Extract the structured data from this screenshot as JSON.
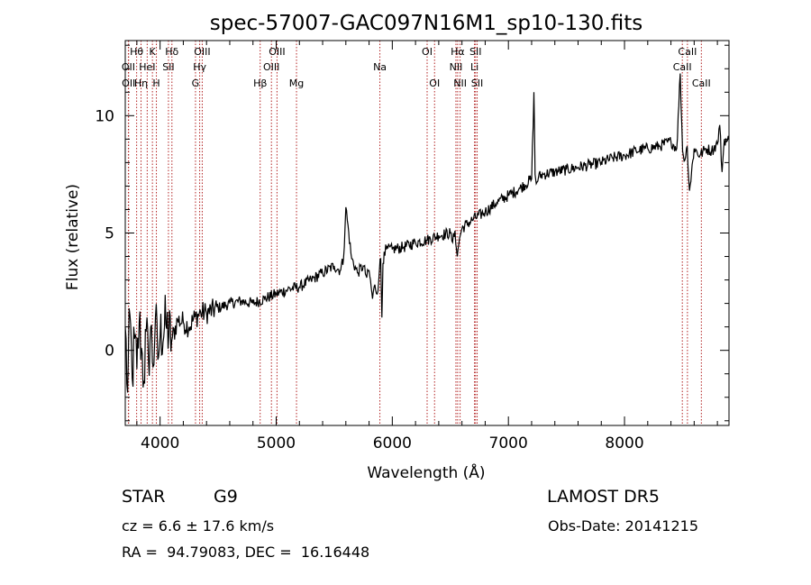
{
  "chart_data": {
    "type": "line",
    "title": "spec-57007-GAC097N16M1_sp10-130.fits",
    "xlabel": "Wavelength (Å)",
    "ylabel": "Flux (relative)",
    "xlim": [
      3700,
      8900
    ],
    "ylim": [
      -3.2,
      13.2
    ],
    "x_ticks": [
      4000,
      5000,
      6000,
      7000,
      8000
    ],
    "y_ticks": [
      0,
      5,
      10
    ],
    "line_color": "#000000",
    "marker_color": "#b22222",
    "grid": false,
    "series": [
      {
        "values_x": [
          3700,
          3720,
          3740,
          3760,
          3780,
          3800,
          3820,
          3840,
          3860,
          3880,
          3900,
          3920,
          3940,
          3960,
          3980,
          4000,
          4050,
          4100,
          4150,
          4200,
          4250,
          4300,
          4350,
          4400,
          4500,
          4600,
          4700,
          4800,
          4900,
          5000,
          5100,
          5200,
          5300,
          5400,
          5500,
          5550,
          5580,
          5600,
          5650,
          5700,
          5750,
          5780,
          5800,
          5830,
          5850,
          5870,
          5890,
          5900,
          5910,
          5920,
          5930,
          5950,
          6000,
          6100,
          6200,
          6300,
          6400,
          6500,
          6520,
          6540,
          6560,
          6580,
          6600,
          6700,
          6800,
          6900,
          7000,
          7100,
          7200,
          7220,
          7230,
          7240,
          7260,
          7300,
          7400,
          7500,
          7600,
          7700,
          7800,
          7900,
          8000,
          8100,
          8200,
          8300,
          8400,
          8450,
          8480,
          8500,
          8520,
          8540,
          8560,
          8600,
          8650,
          8700,
          8750,
          8800,
          8820,
          8840,
          8860,
          8880,
          8900
        ],
        "values_y": [
          1.0,
          -1.8,
          1.5,
          -1.2,
          0.5,
          -0.8,
          1.2,
          0.1,
          -1.3,
          0.8,
          -0.5,
          1.0,
          -0.7,
          1.4,
          -0.4,
          0.6,
          1.1,
          0.4,
          1.3,
          1.2,
          1.0,
          1.4,
          1.6,
          1.6,
          1.8,
          2.0,
          2.1,
          2.0,
          2.2,
          2.4,
          2.6,
          2.7,
          3.0,
          3.3,
          3.6,
          3.4,
          3.9,
          6.1,
          3.9,
          3.3,
          3.6,
          3.1,
          3.4,
          2.2,
          2.8,
          2.4,
          3.5,
          3.9,
          1.4,
          3.7,
          4.2,
          4.3,
          4.3,
          4.4,
          4.6,
          4.7,
          4.9,
          5.0,
          4.6,
          5.1,
          4.0,
          4.8,
          5.2,
          5.6,
          5.9,
          6.3,
          6.6,
          6.9,
          7.3,
          11.0,
          7.5,
          7.1,
          7.4,
          7.5,
          7.6,
          7.7,
          7.8,
          7.9,
          8.0,
          8.2,
          8.3,
          8.5,
          8.6,
          8.7,
          8.9,
          8.6,
          11.8,
          8.5,
          8.1,
          8.7,
          6.8,
          8.6,
          8.3,
          8.6,
          8.5,
          8.8,
          9.6,
          7.6,
          9.0,
          8.9,
          9.0
        ]
      }
    ],
    "lines": [
      {
        "label": "Hθ",
        "x": 3798,
        "row": 0
      },
      {
        "label": "OII",
        "x": 3727,
        "row": 1
      },
      {
        "label": "OII",
        "x": 3729,
        "row": 2
      },
      {
        "label": "Hη",
        "x": 3836,
        "row": 2
      },
      {
        "label": "HeI",
        "x": 3889,
        "row": 1
      },
      {
        "label": "K",
        "x": 3934,
        "row": 0
      },
      {
        "label": "H",
        "x": 3968,
        "row": 2
      },
      {
        "label": "Hδ",
        "x": 4102,
        "row": 0
      },
      {
        "label": "SII",
        "x": 4072,
        "row": 1
      },
      {
        "label": "OIII",
        "x": 4363,
        "row": 0
      },
      {
        "label": "Hγ",
        "x": 4341,
        "row": 1
      },
      {
        "label": "G",
        "x": 4305,
        "row": 2
      },
      {
        "label": "Hβ",
        "x": 4862,
        "row": 2
      },
      {
        "label": "OIII",
        "x": 4959,
        "row": 1
      },
      {
        "label": "OIII",
        "x": 5007,
        "row": 0
      },
      {
        "label": "Mg",
        "x": 5175,
        "row": 2
      },
      {
        "label": "Na",
        "x": 5893,
        "row": 1
      },
      {
        "label": "OI",
        "x": 6300,
        "row": 0
      },
      {
        "label": "OI",
        "x": 6364,
        "row": 2
      },
      {
        "label": "Hα",
        "x": 6563,
        "row": 0
      },
      {
        "label": "NII",
        "x": 6548,
        "row": 1
      },
      {
        "label": "NII",
        "x": 6584,
        "row": 2
      },
      {
        "label": "SII",
        "x": 6717,
        "row": 0
      },
      {
        "label": "Li",
        "x": 6708,
        "row": 1
      },
      {
        "label": "SII",
        "x": 6731,
        "row": 2
      },
      {
        "label": "CaII",
        "x": 8542,
        "row": 0
      },
      {
        "label": "CaII",
        "x": 8498,
        "row": 1
      },
      {
        "label": "CaII",
        "x": 8662,
        "row": 2
      }
    ]
  },
  "info": {
    "class_label": "STAR",
    "subclass": "G9",
    "survey": "LAMOST DR5",
    "velocity": "cz = 6.6 ± 17.6 km/s",
    "obs_date": "Obs-Date: 20141215",
    "coords": "RA =  94.79083, DEC =  16.16448"
  }
}
